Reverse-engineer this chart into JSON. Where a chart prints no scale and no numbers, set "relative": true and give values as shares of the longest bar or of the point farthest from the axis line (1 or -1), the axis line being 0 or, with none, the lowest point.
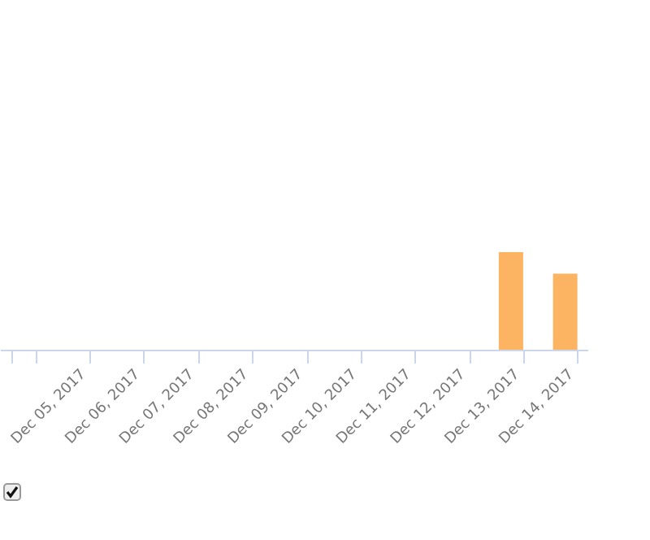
{
  "chart_data": {
    "type": "bar",
    "relative": true,
    "categories": [
      null,
      "Dec 05, 2017",
      "Dec 06, 2017",
      "Dec 07, 2017",
      "Dec 08, 2017",
      "Dec 09, 2017",
      "Dec 10, 2017",
      "Dec 11, 2017",
      "Dec 12, 2017",
      "Dec 13, 2017",
      "Dec 14, 2017"
    ],
    "values": [
      0,
      0,
      0,
      0,
      0,
      0,
      0,
      0,
      0,
      1,
      0.78
    ],
    "color": "#fdb462"
  }
}
